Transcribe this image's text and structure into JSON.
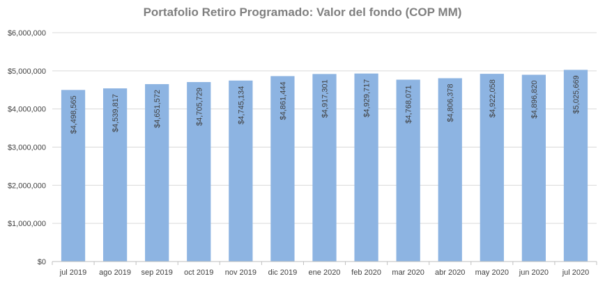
{
  "chart_data": {
    "type": "bar",
    "title": "Portafolio Retiro Programado: Valor del fondo (COP MM)",
    "xlabel": "",
    "ylabel": "",
    "categories": [
      "jul 2019",
      "ago 2019",
      "sep 2019",
      "oct 2019",
      "nov 2019",
      "dic 2019",
      "ene 2020",
      "feb 2020",
      "mar 2020",
      "abr 2020",
      "may 2020",
      "jun 2020",
      "jul 2020"
    ],
    "values": [
      4498565,
      4539817,
      4651572,
      4705729,
      4745134,
      4861444,
      4917301,
      4929717,
      4768071,
      4806378,
      4922058,
      4896820,
      5025669
    ],
    "data_labels": [
      "$4,498,565",
      "$4,539,817",
      "$4,651,572",
      "$4,705,729",
      "$4,745,134",
      "$4,861,444",
      "$4,917,301",
      "$4,929,717",
      "$4,768,071",
      "$4,806,378",
      "$4,922,058",
      "$4,896,820",
      "$5,025,669"
    ],
    "ylim": [
      0,
      6000000
    ],
    "yticks": [
      0,
      1000000,
      2000000,
      3000000,
      4000000,
      5000000,
      6000000
    ],
    "ytick_labels": [
      "$0",
      "$1,000,000",
      "$2,000,000",
      "$3,000,000",
      "$4,000,000",
      "$5,000,000",
      "$6,000,000"
    ],
    "grid": true,
    "legend": "none",
    "colors": {
      "bar": "#8db4e2",
      "grid": "#d9d9d9",
      "axis": "#bfbfbf",
      "title": "#7f7f7f",
      "text": "#404040"
    }
  }
}
